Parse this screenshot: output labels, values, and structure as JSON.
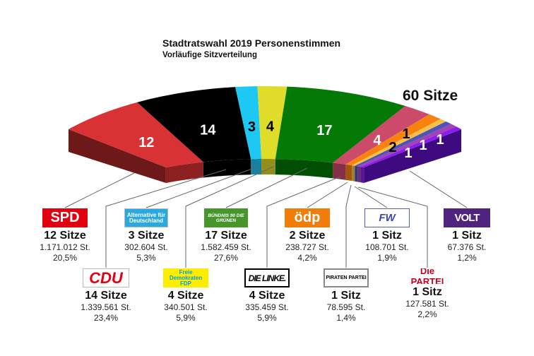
{
  "title": "Stadtratswahl 2019 Personenstimmen",
  "subtitle": "Vorläufige Sitzverteilung",
  "total_label": "60 Sitze",
  "chart_data": {
    "type": "pie",
    "shape": "semicircle-3d",
    "title": "Stadtratswahl 2019 Personenstimmen",
    "subtitle": "Vorläufige Sitzverteilung",
    "total": 60,
    "categories": [
      "SPD",
      "CDU",
      "AfD",
      "FDP",
      "Grüne",
      "Die Linke",
      "ÖDP",
      "Piraten",
      "FW",
      "Die PARTEI",
      "Volt"
    ],
    "values": [
      12,
      14,
      3,
      4,
      17,
      4,
      2,
      1,
      1,
      1,
      1
    ],
    "colors": [
      "#d93234",
      "#000000",
      "#1ec8f5",
      "#e0dc2a",
      "#037a05",
      "#cc4a6a",
      "#f7820e",
      "#f6c14a",
      "#4b54b8",
      "#a443b4",
      "#8a1ef0"
    ],
    "label_colors": [
      "#fff",
      "#fff",
      "#000",
      "#000",
      "#fff",
      "#fff",
      "#000",
      "#000",
      "#fff",
      "#fff",
      "#fff"
    ],
    "labels": [
      "12",
      "14",
      "3",
      "4",
      "17",
      "4",
      "2",
      "1",
      "1",
      "1",
      "1"
    ]
  },
  "parties": [
    {
      "logo": "SPD",
      "seats": "12 Sitze",
      "votes": "1.171.012 St.",
      "pct": "20,5%"
    },
    {
      "logo": "CDU",
      "seats": "14 Sitze",
      "votes": "1.339.561 St.",
      "pct": "23,4%"
    },
    {
      "logo": "Alternative für Deutschland",
      "seats": "3 Sitze",
      "votes": "302.604 St.",
      "pct": "5,3%"
    },
    {
      "logo": "Freie Demokraten FDP",
      "seats": "4 Sitze",
      "votes": "340.501 St.",
      "pct": "5,9%"
    },
    {
      "logo": "BÜNDNIS 90 DIE GRÜNEN",
      "seats": "17 Sitze",
      "votes": "1.582.459 St.",
      "pct": "27,6%"
    },
    {
      "logo": "DIE LINKE.",
      "seats": "4 Sitze",
      "votes": "335.459 St.",
      "pct": "5,9%"
    },
    {
      "logo": "ödp",
      "seats": "2 Sitze",
      "votes": "238.727 St.",
      "pct": "4,2%"
    },
    {
      "logo": "PIRATEN PARTEI",
      "seats": "1 Sitz",
      "votes": "78.595 St.",
      "pct": "1,4%"
    },
    {
      "logo": "FW",
      "seats": "1 Sitz",
      "votes": "108.701 St.",
      "pct": "1,9%"
    },
    {
      "logo": "Die PARTEI",
      "seats": "1 Sitz",
      "votes": "127.581 St.",
      "pct": "2,2%"
    },
    {
      "logo": "VOLT",
      "seats": "1 Sitz",
      "votes": "67.376 St.",
      "pct": "1,2%"
    }
  ]
}
